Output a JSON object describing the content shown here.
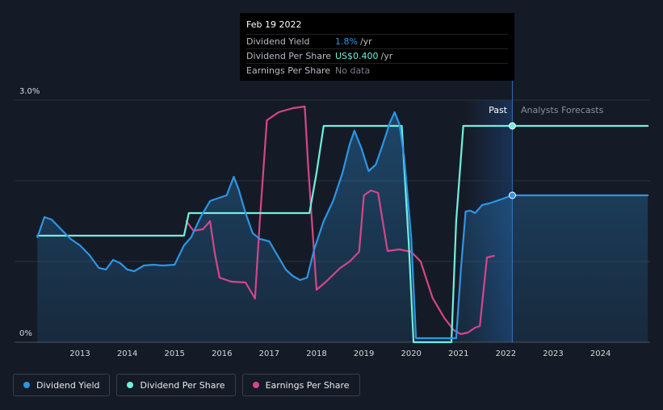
{
  "tooltip": {
    "date": "Feb 19 2022",
    "rows": [
      {
        "label": "Dividend Yield",
        "value": "1.8%",
        "unit": "/yr"
      },
      {
        "label": "Dividend Per Share",
        "value": "US$0.400",
        "unit": "/yr"
      },
      {
        "label": "Earnings Per Share",
        "value": "No data",
        "unit": ""
      }
    ]
  },
  "regions": {
    "past": "Past",
    "forecast": "Analysts Forecasts"
  },
  "colors": {
    "dividend_yield": "#2d95e3",
    "dividend_per_share": "#6ff0df",
    "earnings_per_share": "#d6458a",
    "background": "#151b26"
  },
  "legend": [
    {
      "label": "Dividend Yield",
      "color": "#2d95e3"
    },
    {
      "label": "Dividend Per Share",
      "color": "#6ff0df"
    },
    {
      "label": "Earnings Per Share",
      "color": "#d6458a"
    }
  ],
  "chart_data": {
    "type": "line",
    "x_ticks": [
      "2013",
      "2014",
      "2015",
      "2016",
      "2017",
      "2018",
      "2019",
      "2020",
      "2021",
      "2022",
      "2023",
      "2024"
    ],
    "y_ticks": [
      "0%",
      "3.0%"
    ],
    "xlim": [
      2012.1,
      2025.0
    ],
    "ylim": [
      0,
      3.0
    ],
    "highlight_date": "Feb 19 2022",
    "series": [
      {
        "name": "Dividend Yield",
        "x": [
          2012.1,
          2012.25,
          2012.4,
          2012.6,
          2012.8,
          2013.0,
          2013.2,
          2013.4,
          2013.55,
          2013.7,
          2013.85,
          2014.0,
          2014.15,
          2014.35,
          2014.55,
          2014.75,
          2015.0,
          2015.2,
          2015.35,
          2015.55,
          2015.75,
          2015.9,
          2016.1,
          2016.25,
          2016.35,
          2016.5,
          2016.65,
          2016.8,
          2017.0,
          2017.2,
          2017.35,
          2017.5,
          2017.65,
          2017.8,
          2017.95,
          2018.15,
          2018.35,
          2018.55,
          2018.7,
          2018.8,
          2018.95,
          2019.1,
          2019.25,
          2019.4,
          2019.55,
          2019.65,
          2019.75,
          2019.85,
          2020.0,
          2020.1,
          2020.3,
          2020.5,
          2020.7,
          2020.85,
          2020.95,
          2021.05,
          2021.15,
          2021.25,
          2021.35,
          2021.5,
          2021.65,
          2021.8,
          2021.95,
          2022.13,
          2025.0
        ],
        "values": [
          1.3,
          1.55,
          1.52,
          1.4,
          1.28,
          1.2,
          1.08,
          0.92,
          0.9,
          1.02,
          0.98,
          0.9,
          0.88,
          0.95,
          0.96,
          0.95,
          0.96,
          1.2,
          1.3,
          1.55,
          1.75,
          1.78,
          1.82,
          2.05,
          1.9,
          1.6,
          1.35,
          1.28,
          1.25,
          1.05,
          0.9,
          0.82,
          0.77,
          0.8,
          1.15,
          1.5,
          1.75,
          2.1,
          2.45,
          2.62,
          2.4,
          2.12,
          2.2,
          2.45,
          2.72,
          2.85,
          2.7,
          2.3,
          1.3,
          0.05,
          0.05,
          0.05,
          0.05,
          0.05,
          0.05,
          0.9,
          1.62,
          1.63,
          1.6,
          1.7,
          1.72,
          1.75,
          1.78,
          1.82,
          1.82
        ]
      },
      {
        "name": "Dividend Per Share",
        "x": [
          2012.1,
          2015.2,
          2015.3,
          2017.85,
          2018.0,
          2018.15,
          2019.8,
          2019.95,
          2020.05,
          2020.85,
          2020.95,
          2021.1,
          2025.0
        ],
        "values": [
          1.32,
          1.32,
          1.6,
          1.6,
          2.1,
          2.68,
          2.68,
          1.2,
          0.0,
          0.0,
          1.5,
          2.68,
          2.68
        ]
      },
      {
        "name": "Earnings Per Share",
        "x": [
          2015.25,
          2015.4,
          2015.6,
          2015.75,
          2015.85,
          2015.95,
          2016.2,
          2016.5,
          2016.7,
          2016.8,
          2016.95,
          2017.2,
          2017.5,
          2017.75,
          2017.82,
          2018.0,
          2018.2,
          2018.5,
          2018.7,
          2018.9,
          2019.0,
          2019.15,
          2019.3,
          2019.5,
          2019.75,
          2020.0,
          2020.2,
          2020.45,
          2020.7,
          2020.9,
          2021.05,
          2021.2,
          2021.35,
          2021.45,
          2021.6,
          2021.75
        ],
        "values": [
          1.5,
          1.38,
          1.4,
          1.5,
          1.1,
          0.8,
          0.75,
          0.74,
          0.54,
          1.5,
          2.75,
          2.85,
          2.9,
          2.92,
          2.2,
          0.65,
          0.75,
          0.92,
          1.0,
          1.12,
          1.82,
          1.88,
          1.85,
          1.13,
          1.15,
          1.12,
          1.0,
          0.55,
          0.3,
          0.15,
          0.1,
          0.12,
          0.18,
          0.2,
          1.05,
          1.07
        ]
      }
    ]
  }
}
